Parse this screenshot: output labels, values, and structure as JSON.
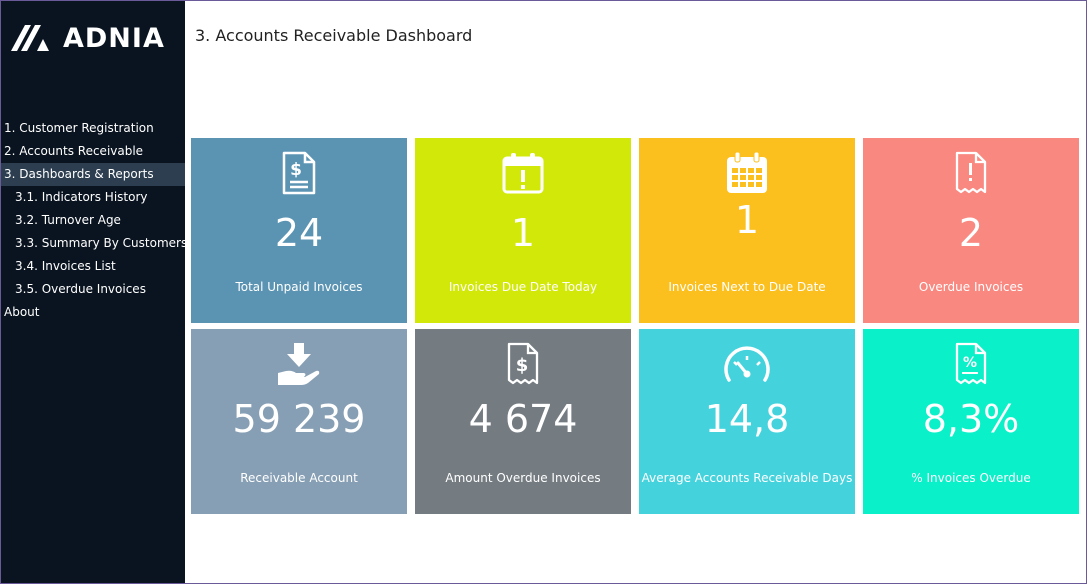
{
  "brand": {
    "name": "ADNIA"
  },
  "page": {
    "title": "3. Accounts Receivable Dashboard"
  },
  "nav": {
    "items": [
      {
        "label": "1. Customer Registration"
      },
      {
        "label": "2. Accounts Receivable"
      },
      {
        "label": "3. Dashboards & Reports"
      },
      {
        "label": "3.1. Indicators History"
      },
      {
        "label": "3.2. Turnover Age"
      },
      {
        "label": "3.3. Summary By Customers"
      },
      {
        "label": "3.4. Invoices List"
      },
      {
        "label": "3.5. Overdue Invoices"
      },
      {
        "label": "About"
      }
    ]
  },
  "tiles": [
    {
      "value": "24",
      "label": "Total Unpaid Invoices",
      "color": "#5b94b3",
      "icon": "invoice-dollar-icon"
    },
    {
      "value": "1",
      "label": "Invoices Due Date Today",
      "color": "#d2e809",
      "icon": "calendar-alert-icon"
    },
    {
      "value": "1",
      "label": "Invoices Next to Due Date",
      "color": "#fbbf1e",
      "icon": "calendar-grid-icon"
    },
    {
      "value": "2",
      "label": "Overdue Invoices",
      "color": "#f98880",
      "icon": "receipt-alert-icon"
    },
    {
      "value": "59 239",
      "label": "Receivable Account",
      "color": "#879fb4",
      "icon": "hand-receive-icon"
    },
    {
      "value": "4 674",
      "label": "Amount Overdue Invoices",
      "color": "#747c82",
      "icon": "receipt-dollar-icon"
    },
    {
      "value": "14,8",
      "label": "Average Accounts Receivable Days",
      "color": "#44d3dd",
      "icon": "gauge-icon"
    },
    {
      "value": "8,3%",
      "label": "% Invoices Overdue",
      "color": "#0af0c8",
      "icon": "receipt-percent-icon"
    }
  ]
}
